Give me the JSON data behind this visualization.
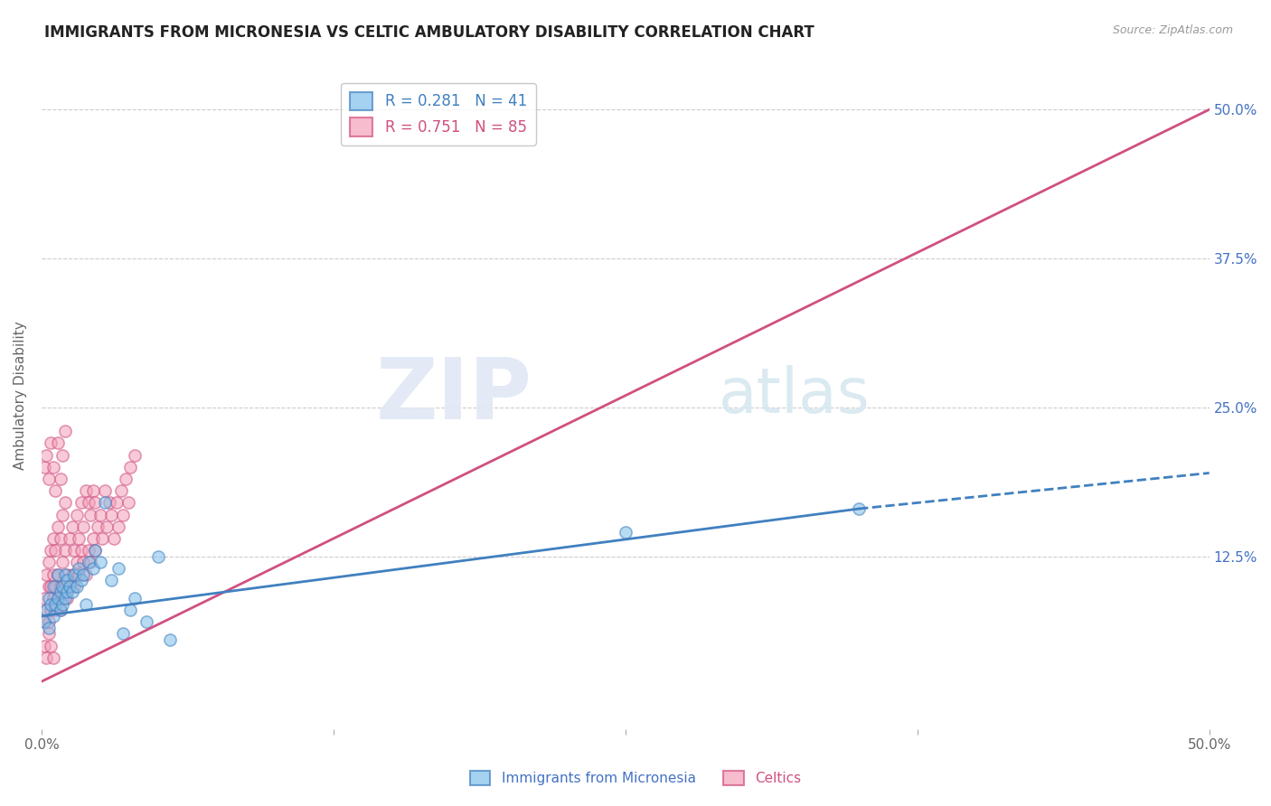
{
  "title": "IMMIGRANTS FROM MICRONESIA VS CELTIC AMBULATORY DISABILITY CORRELATION CHART",
  "source": "Source: ZipAtlas.com",
  "ylabel": "Ambulatory Disability",
  "xlim": [
    0,
    0.5
  ],
  "ylim": [
    -0.02,
    0.54
  ],
  "xtick_positions": [
    0.0,
    0.125,
    0.25,
    0.375,
    0.5
  ],
  "xtick_labels": [
    "0.0%",
    "",
    "",
    "",
    "50.0%"
  ],
  "ytick_positions": [
    0.125,
    0.25,
    0.375,
    0.5
  ],
  "ytick_labels": [
    "12.5%",
    "25.0%",
    "37.5%",
    "50.0%"
  ],
  "grid_color": "#cccccc",
  "background_color": "#ffffff",
  "blue_color": "#7fbfea",
  "pink_color": "#f4a0b8",
  "trend_blue": "#4080c0",
  "trend_pink": "#d05080",
  "legend_R_blue": "R = 0.281",
  "legend_N_blue": "N = 41",
  "legend_R_pink": "R = 0.751",
  "legend_N_pink": "N = 85",
  "pink_trend_x0": 0.0,
  "pink_trend_y0": 0.02,
  "pink_trend_x1": 0.5,
  "pink_trend_y1": 0.5,
  "blue_trend_solid_x0": 0.0,
  "blue_trend_solid_y0": 0.075,
  "blue_trend_solid_x1": 0.35,
  "blue_trend_solid_y1": 0.165,
  "blue_trend_dash_x0": 0.35,
  "blue_trend_dash_y0": 0.165,
  "blue_trend_dash_x1": 0.5,
  "blue_trend_dash_y1": 0.195,
  "blue_scatter_x": [
    0.001,
    0.002,
    0.003,
    0.003,
    0.004,
    0.005,
    0.005,
    0.006,
    0.007,
    0.007,
    0.008,
    0.008,
    0.009,
    0.009,
    0.01,
    0.01,
    0.011,
    0.011,
    0.012,
    0.013,
    0.014,
    0.015,
    0.016,
    0.017,
    0.018,
    0.019,
    0.02,
    0.022,
    0.023,
    0.025,
    0.027,
    0.03,
    0.033,
    0.035,
    0.038,
    0.04,
    0.045,
    0.05,
    0.055,
    0.25,
    0.35
  ],
  "blue_scatter_y": [
    0.07,
    0.08,
    0.09,
    0.065,
    0.085,
    0.075,
    0.1,
    0.085,
    0.09,
    0.11,
    0.08,
    0.095,
    0.085,
    0.1,
    0.09,
    0.11,
    0.095,
    0.105,
    0.1,
    0.095,
    0.11,
    0.1,
    0.115,
    0.105,
    0.11,
    0.085,
    0.12,
    0.115,
    0.13,
    0.12,
    0.17,
    0.105,
    0.115,
    0.06,
    0.08,
    0.09,
    0.07,
    0.125,
    0.055,
    0.145,
    0.165
  ],
  "pink_scatter_x": [
    0.001,
    0.001,
    0.002,
    0.002,
    0.003,
    0.003,
    0.003,
    0.004,
    0.004,
    0.004,
    0.005,
    0.005,
    0.005,
    0.006,
    0.006,
    0.006,
    0.007,
    0.007,
    0.007,
    0.008,
    0.008,
    0.008,
    0.009,
    0.009,
    0.009,
    0.01,
    0.01,
    0.01,
    0.011,
    0.011,
    0.012,
    0.012,
    0.013,
    0.013,
    0.014,
    0.014,
    0.015,
    0.015,
    0.016,
    0.016,
    0.017,
    0.017,
    0.018,
    0.018,
    0.019,
    0.019,
    0.02,
    0.02,
    0.021,
    0.021,
    0.022,
    0.022,
    0.023,
    0.023,
    0.024,
    0.025,
    0.026,
    0.027,
    0.028,
    0.029,
    0.03,
    0.031,
    0.032,
    0.033,
    0.034,
    0.035,
    0.036,
    0.037,
    0.038,
    0.04,
    0.001,
    0.002,
    0.003,
    0.004,
    0.005,
    0.006,
    0.007,
    0.008,
    0.009,
    0.01,
    0.001,
    0.002,
    0.003,
    0.004,
    0.005
  ],
  "pink_scatter_y": [
    0.07,
    0.09,
    0.08,
    0.11,
    0.07,
    0.1,
    0.12,
    0.08,
    0.1,
    0.13,
    0.09,
    0.11,
    0.14,
    0.08,
    0.1,
    0.13,
    0.09,
    0.11,
    0.15,
    0.08,
    0.1,
    0.14,
    0.09,
    0.12,
    0.16,
    0.1,
    0.13,
    0.17,
    0.09,
    0.11,
    0.1,
    0.14,
    0.11,
    0.15,
    0.1,
    0.13,
    0.12,
    0.16,
    0.11,
    0.14,
    0.13,
    0.17,
    0.12,
    0.15,
    0.11,
    0.18,
    0.13,
    0.17,
    0.12,
    0.16,
    0.14,
    0.18,
    0.13,
    0.17,
    0.15,
    0.16,
    0.14,
    0.18,
    0.15,
    0.17,
    0.16,
    0.14,
    0.17,
    0.15,
    0.18,
    0.16,
    0.19,
    0.17,
    0.2,
    0.21,
    0.2,
    0.21,
    0.19,
    0.22,
    0.2,
    0.18,
    0.22,
    0.19,
    0.21,
    0.23,
    0.05,
    0.04,
    0.06,
    0.05,
    0.04
  ]
}
